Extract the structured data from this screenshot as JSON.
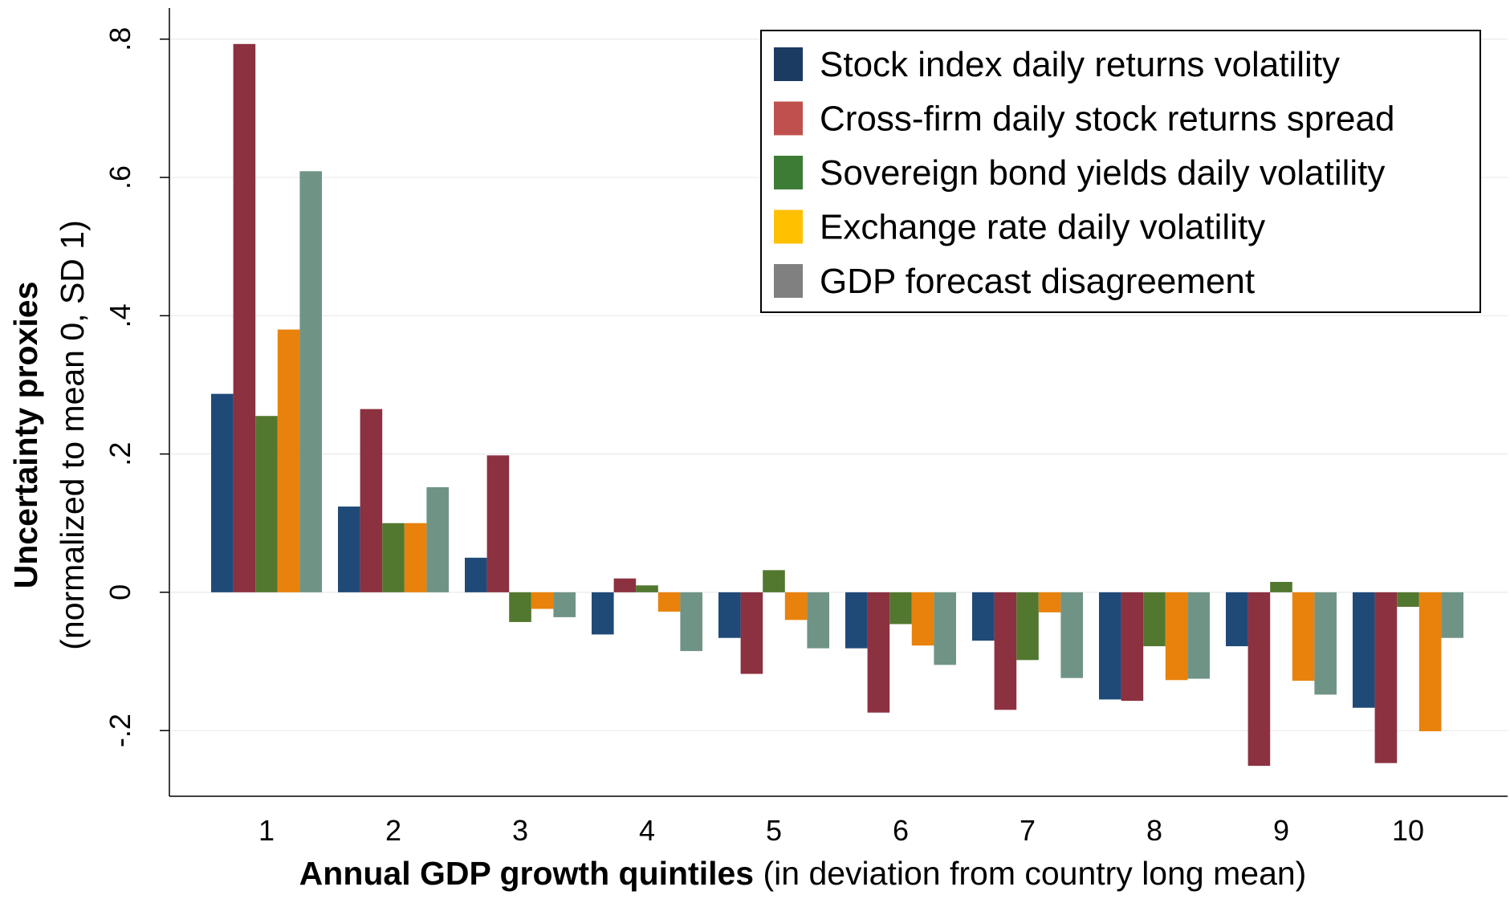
{
  "chart_data": {
    "type": "bar",
    "x_label": [
      "Annual GDP growth quintiles",
      "(in deviation from country long mean)"
    ],
    "y_label": [
      "Uncertainty proxies",
      "(normalized to mean 0, SD 1)"
    ],
    "categories": [
      "1",
      "2",
      "3",
      "4",
      "5",
      "6",
      "7",
      "8",
      "9",
      "10"
    ],
    "series": [
      {
        "name": "Stock index daily returns volatility",
        "color": "#1f4a78",
        "legend_color": "#1b3b62",
        "values": [
          0.287,
          0.124,
          0.05,
          -0.061,
          -0.066,
          -0.081,
          -0.07,
          -0.155,
          -0.078,
          -0.167
        ]
      },
      {
        "name": "Cross-firm daily stock returns spread",
        "color": "#8c3140",
        "legend_color": "#c0504d",
        "values": [
          0.793,
          0.265,
          0.198,
          0.02,
          -0.118,
          -0.174,
          -0.17,
          -0.157,
          -0.251,
          -0.247
        ]
      },
      {
        "name": "Sovereign bond yields daily volatility",
        "color": "#52772e",
        "legend_color": "#3d7c35",
        "values": [
          0.255,
          0.1,
          -0.043,
          0.01,
          0.032,
          -0.046,
          -0.098,
          -0.078,
          0.015,
          -0.021
        ]
      },
      {
        "name": "Exchange rate daily volatility",
        "color": "#e8820c",
        "legend_color": "#ffc000",
        "values": [
          0.38,
          0.1,
          -0.024,
          -0.028,
          -0.04,
          -0.077,
          -0.029,
          -0.127,
          -0.128,
          -0.201
        ]
      },
      {
        "name": "GDP forecast disagreement",
        "color": "#6f9486",
        "legend_color": "#808080",
        "values": [
          0.609,
          0.152,
          -0.036,
          -0.085,
          -0.081,
          -0.105,
          -0.124,
          -0.125,
          -0.148,
          -0.066
        ]
      }
    ],
    "ylim": [
      -0.295,
      0.845
    ],
    "yticks": [
      {
        "value": -0.2,
        "label": "-.2"
      },
      0,
      {
        "value": 0.2,
        "label": ".2"
      },
      {
        "value": 0.4,
        "label": ".4"
      },
      {
        "value": 0.6,
        "label": ".6"
      },
      {
        "value": 0.8,
        "label": ".8"
      }
    ],
    "grid": true,
    "legend": "top-right"
  }
}
